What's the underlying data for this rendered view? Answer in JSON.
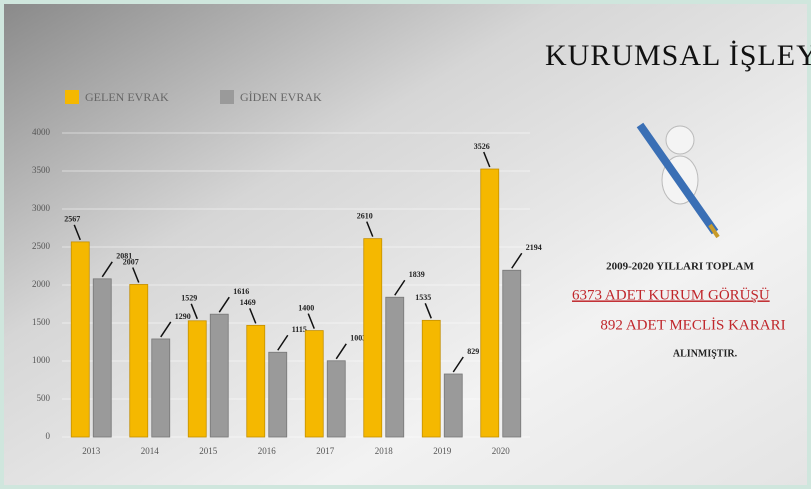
{
  "chart_data": {
    "type": "bar",
    "title": "KURUMSAL İŞLEYİŞ",
    "categories": [
      "2013",
      "2014",
      "2015",
      "2016",
      "2017",
      "2018",
      "2019",
      "2020"
    ],
    "series": [
      {
        "name": "GELEN EVRAK",
        "color": "#f5b800",
        "values": [
          2567,
          2007,
          1529,
          1469,
          1400,
          2610,
          1535,
          3526
        ]
      },
      {
        "name": "GİDEN EVRAK",
        "color": "#9a9a9a",
        "values": [
          2081,
          1290,
          1616,
          1115,
          1003,
          1839,
          829,
          2194
        ]
      }
    ],
    "ylim": [
      0,
      4000
    ],
    "yticks": [
      0,
      500,
      1000,
      1500,
      2000,
      2500,
      3000,
      3500,
      4000
    ],
    "grid": true,
    "legend": "top-left",
    "annotations": [
      "2009-2020 YILLARI TOPLAM",
      "6373 ADET KURUM GÖRÜŞÜ",
      "892 ADET MECLİS KARARI",
      "ALINMIŞTIR."
    ]
  }
}
